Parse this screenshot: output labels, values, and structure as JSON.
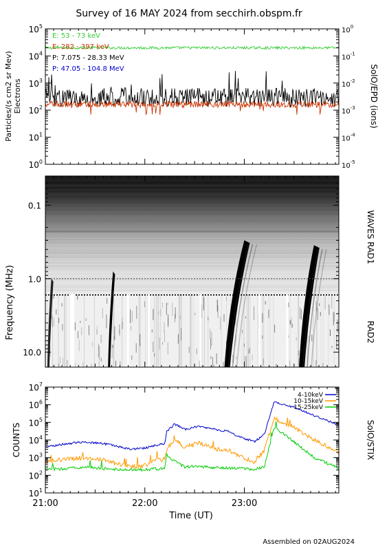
{
  "page": {
    "title": "Survey of 16 MAY 2024 from secchirh.obspm.fr",
    "footer": "Assembled on 02AUG2024"
  },
  "time_axis": {
    "label": "Time (UT)",
    "ticks": [
      "21:00",
      "22:00",
      "23:00"
    ],
    "range_hours": [
      21.0,
      23.95
    ]
  },
  "chart_data": [
    {
      "type": "line",
      "id": "particles",
      "ylabel_lines": [
        "Particles/(s cm2 sr Mev)",
        "Electrons"
      ],
      "right_label": "SolO/EPD (ions)",
      "yscale": "log",
      "ylim": [
        1,
        100000
      ],
      "y_ticks": [
        {
          "base": "10",
          "exp": "0"
        },
        {
          "base": "10",
          "exp": "1"
        },
        {
          "base": "10",
          "exp": "2"
        },
        {
          "base": "10",
          "exp": "3"
        },
        {
          "base": "10",
          "exp": "4"
        },
        {
          "base": "10",
          "exp": "5"
        }
      ],
      "right_ylim": [
        1e-05,
        1
      ],
      "right_ticks": [
        {
          "base": "10",
          "exp": "-5"
        },
        {
          "base": "10",
          "exp": "-4"
        },
        {
          "base": "10",
          "exp": "-3"
        },
        {
          "base": "10",
          "exp": "-2"
        },
        {
          "base": "10",
          "exp": "-1"
        },
        {
          "base": "10",
          "exp": "0"
        }
      ],
      "legend": [
        {
          "label": "E: 53 - 73 keV",
          "color": "#33cc33"
        },
        {
          "label": "E: 282 - 397 keV",
          "color": "#cc3300"
        },
        {
          "label": "P: 7.075 - 28.33 MeV",
          "color": "#000000"
        },
        {
          "label": "P: 47.05 - 104.8 MeV",
          "color": "#0000cc"
        }
      ],
      "series": [
        {
          "name": "E: 53 - 73 keV",
          "color": "#33cc33",
          "axis": "left",
          "level": 20000,
          "noise": 0.05
        },
        {
          "name": "E: 282 - 397 keV",
          "color": "#cc3300",
          "axis": "left",
          "level": 165,
          "noise": 0.12
        },
        {
          "name": "P: 7.075 - 28.33 MeV",
          "color": "#000000",
          "axis": "right",
          "level": 0.0025,
          "noise": 0.35
        }
      ]
    },
    {
      "type": "heatmap",
      "id": "radio",
      "ylabel": "Frequency (MHz)",
      "right_labels": [
        "WAVES RAD1",
        "RAD2"
      ],
      "yscale": "log",
      "yaxis_inverted": true,
      "ylim": [
        0.04,
        16
      ],
      "y_ticks": [
        "0.1",
        "1.0",
        "10.0"
      ],
      "rad1_rad2_boundary_mhz": 1.0,
      "bursts": [
        {
          "t0": 21.02,
          "t1": 21.06,
          "f_low": 16,
          "f_high": 1.0,
          "intensity": 0.85
        },
        {
          "t0": 21.63,
          "t1": 21.68,
          "f_low": 16,
          "f_high": 0.8,
          "intensity": 1.0
        },
        {
          "t0": 22.8,
          "t1": 23.0,
          "f_low": 16,
          "f_high": 0.3,
          "intensity": 1.0
        },
        {
          "t0": 23.55,
          "t1": 23.7,
          "f_low": 16,
          "f_high": 0.35,
          "intensity": 1.0
        }
      ],
      "rad2_gaps_hours": [
        [
          21.25,
          21.29
        ],
        [
          21.82,
          21.84
        ],
        [
          22.03,
          22.05
        ],
        [
          22.55,
          22.57
        ],
        [
          23.14,
          23.16
        ],
        [
          23.42,
          23.44
        ]
      ]
    },
    {
      "type": "line",
      "id": "stix",
      "ylabel": "COUNTS",
      "right_label": "SolO/STIX",
      "yscale": "log",
      "ylim": [
        10,
        10000000
      ],
      "y_ticks": [
        {
          "base": "10",
          "exp": "1"
        },
        {
          "base": "10",
          "exp": "2"
        },
        {
          "base": "10",
          "exp": "3"
        },
        {
          "base": "10",
          "exp": "4"
        },
        {
          "base": "10",
          "exp": "5"
        },
        {
          "base": "10",
          "exp": "6"
        },
        {
          "base": "10",
          "exp": "7"
        }
      ],
      "legend": [
        {
          "label": "4-10keV",
          "color": "#0000cc"
        },
        {
          "label": "10-15keV",
          "color": "#ff9900"
        },
        {
          "label": "15-25keV",
          "color": "#00cc00"
        }
      ],
      "series": [
        {
          "name": "4-10keV",
          "color": "#0000cc",
          "x": [
            21.0,
            21.2,
            21.4,
            21.6,
            21.85,
            22.0,
            22.1,
            22.2,
            22.22,
            22.3,
            22.4,
            22.55,
            22.7,
            22.85,
            22.95,
            23.1,
            23.2,
            23.3,
            23.5,
            23.7,
            23.95
          ],
          "y": [
            4000,
            6000,
            8000,
            6000,
            3000,
            3500,
            5000,
            6000,
            30000,
            80000,
            40000,
            60000,
            40000,
            30000,
            15000,
            8000,
            20000,
            1400000,
            700000,
            250000,
            70000
          ]
        },
        {
          "name": "10-15keV",
          "color": "#ff9900",
          "x": [
            21.0,
            21.2,
            21.4,
            21.6,
            21.85,
            22.0,
            22.1,
            22.2,
            22.22,
            22.3,
            22.4,
            22.55,
            22.7,
            22.85,
            22.95,
            23.1,
            23.2,
            23.3,
            23.5,
            23.7,
            23.95
          ],
          "y": [
            600,
            800,
            1000,
            700,
            300,
            350,
            700,
            800,
            3000,
            10000,
            4000,
            7000,
            3000,
            2500,
            1200,
            600,
            2500,
            170000,
            50000,
            10000,
            2000
          ]
        },
        {
          "name": "15-25keV",
          "color": "#00cc00",
          "x": [
            21.0,
            21.2,
            21.4,
            21.6,
            21.85,
            22.0,
            22.1,
            22.2,
            22.22,
            22.3,
            22.4,
            22.55,
            22.7,
            22.85,
            22.95,
            23.1,
            23.2,
            23.3,
            23.5,
            23.7,
            23.95
          ],
          "y": [
            220,
            230,
            300,
            230,
            200,
            210,
            230,
            240,
            1500,
            600,
            300,
            320,
            280,
            260,
            240,
            220,
            300,
            50000,
            8000,
            1000,
            250
          ]
        }
      ]
    }
  ]
}
